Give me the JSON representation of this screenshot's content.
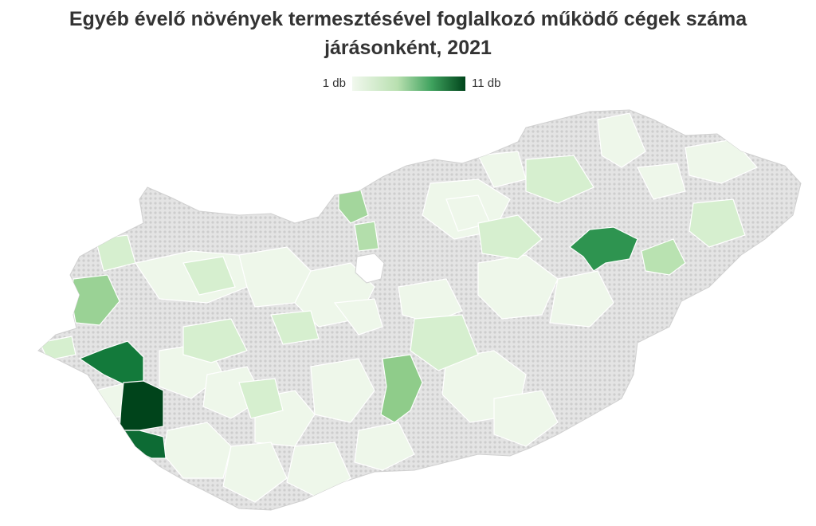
{
  "title": "Egyéb évelő növények termesztésével foglalkozó működő cégek száma járásonként, 2021",
  "legend": {
    "min_label": "1 db",
    "max_label": "11 db",
    "min_value": 1,
    "max_value": 11,
    "color_low": "#f1f8ee",
    "color_high": "#00441b"
  },
  "map": {
    "region": "Magyarország járásai",
    "nodata_color": "#d9d9d9",
    "highlighted_districts": [
      {
        "id": "d-southwest-a",
        "value": 11
      },
      {
        "id": "d-southwest-b",
        "value": 9
      },
      {
        "id": "d-west-center",
        "value": 8
      },
      {
        "id": "d-northeast",
        "value": 7
      },
      {
        "id": "d-east-center",
        "value": 4
      },
      {
        "id": "d-west-north",
        "value": 4
      },
      {
        "id": "d-north-danube",
        "value": 4
      },
      {
        "id": "d-northeast-2",
        "value": 3
      },
      {
        "id": "d-north-danube-2",
        "value": 3
      }
    ]
  }
}
